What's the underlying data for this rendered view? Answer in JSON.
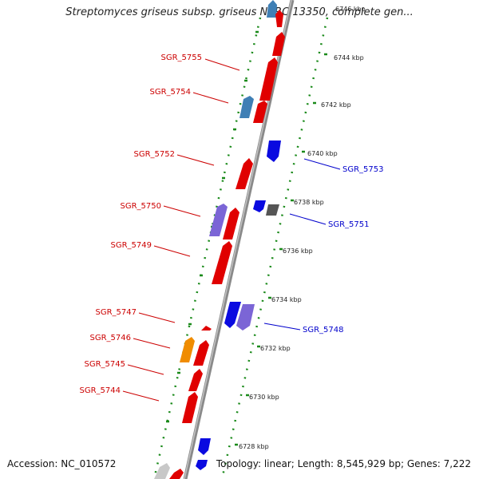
{
  "title": "Streptomyces griseus subsp. griseus NBRC 13350, complete gen...",
  "footer": {
    "accession": "Accession: NC_010572",
    "summary": "Topology: linear; Length: 8,545,929 bp; Genes: 7,222"
  },
  "colors": {
    "forward_label": "#cc0000",
    "reverse_label": "#0000cc",
    "tick": "#1a8a1a",
    "backbone": "#8a8a8a",
    "gene_red": "#e00000",
    "gene_blue": "#0a0ae0",
    "gene_steel": "#3f7fb5",
    "gene_purple": "#7b65d6",
    "gene_orange": "#f08c00",
    "gene_gray": "#555555",
    "gene_light": "#c8c8c8"
  },
  "kbp_ticks": [
    {
      "label": "6746 kbp",
      "kbp": 6746
    },
    {
      "label": "6744 kbp",
      "kbp": 6744
    },
    {
      "label": "6742 kbp",
      "kbp": 6742
    },
    {
      "label": "6740 kbp",
      "kbp": 6740
    },
    {
      "label": "6738 kbp",
      "kbp": 6738
    },
    {
      "label": "6736 kbp",
      "kbp": 6736
    },
    {
      "label": "6734 kbp",
      "kbp": 6734
    },
    {
      "label": "6732 kbp",
      "kbp": 6732
    },
    {
      "label": "6730 kbp",
      "kbp": 6730
    },
    {
      "label": "6728 kbp",
      "kbp": 6728
    }
  ],
  "gene_labels": [
    {
      "name": "SGR_5755",
      "strand": "forward"
    },
    {
      "name": "SGR_5754",
      "strand": "forward"
    },
    {
      "name": "SGR_5752",
      "strand": "forward"
    },
    {
      "name": "SGR_5750",
      "strand": "forward"
    },
    {
      "name": "SGR_5749",
      "strand": "forward"
    },
    {
      "name": "SGR_5747",
      "strand": "forward"
    },
    {
      "name": "SGR_5746",
      "strand": "forward"
    },
    {
      "name": "SGR_5745",
      "strand": "forward"
    },
    {
      "name": "SGR_5744",
      "strand": "forward"
    },
    {
      "name": "SGR_5753",
      "strand": "reverse"
    },
    {
      "name": "SGR_5751",
      "strand": "reverse"
    },
    {
      "name": "SGR_5748",
      "strand": "reverse"
    }
  ]
}
